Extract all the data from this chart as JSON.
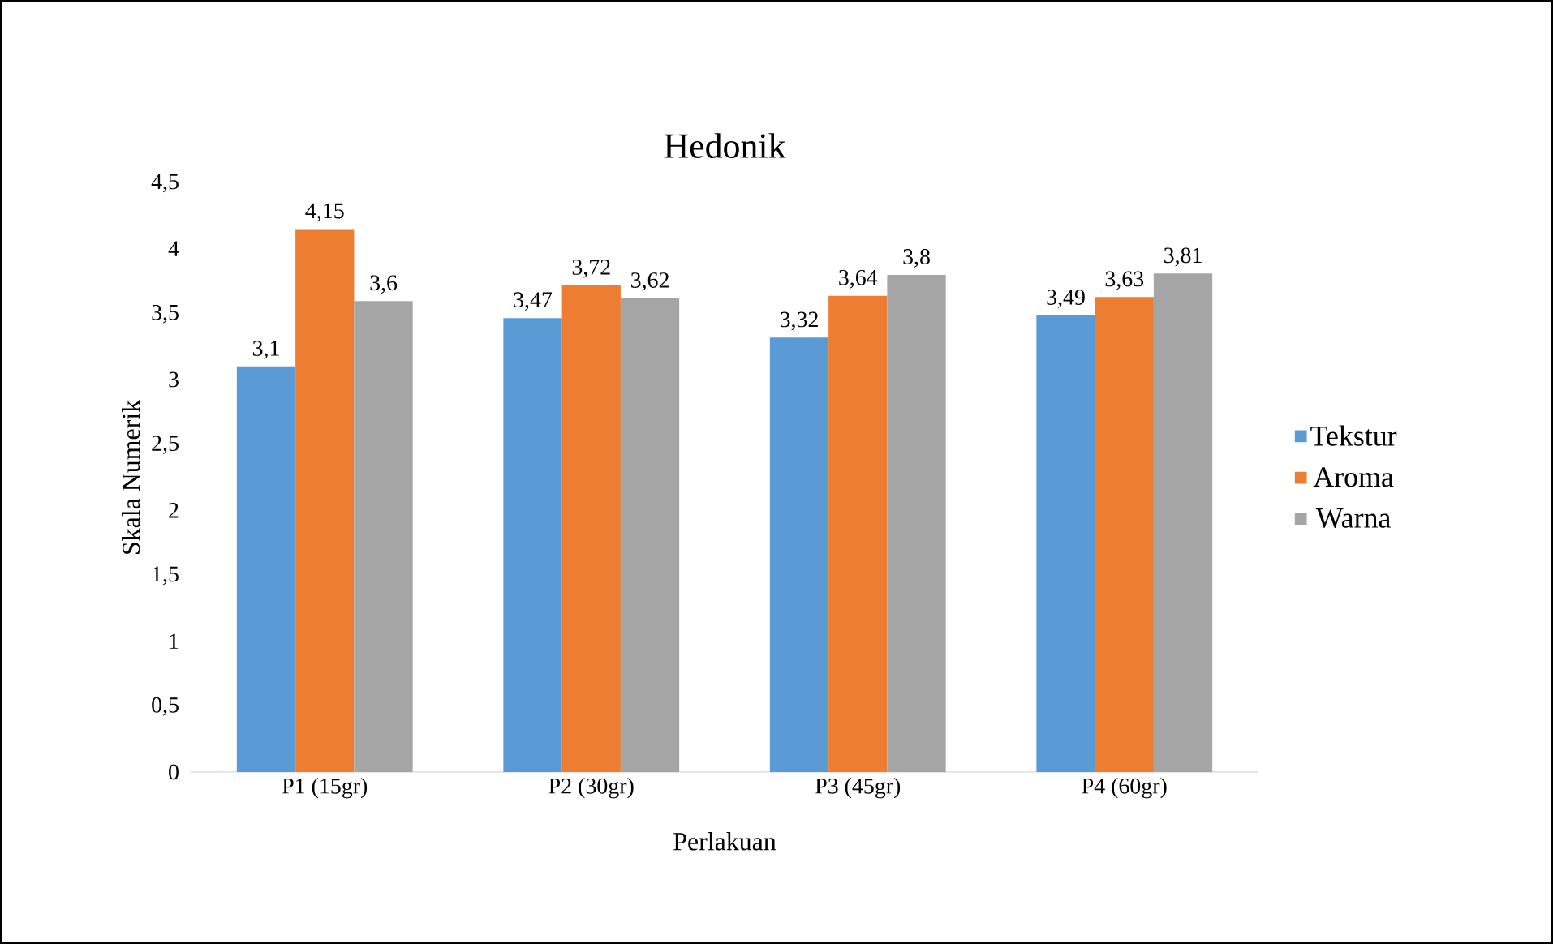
{
  "chart_data": {
    "type": "bar",
    "title": "Hedonik",
    "xlabel": "Perlakuan",
    "ylabel": "Skala Numerik",
    "categories": [
      "P1 (15gr)",
      "P2 (30gr)",
      "P3 (45gr)",
      "P4 (60gr)"
    ],
    "series": [
      {
        "name": "Tekstur",
        "color": "#5b9bd5",
        "values": [
          3.1,
          3.47,
          3.32,
          3.49
        ],
        "value_labels": [
          "3,1",
          "3,47",
          "3,32",
          "3,49"
        ]
      },
      {
        "name": "Aroma",
        "color": "#ed7d31",
        "values": [
          4.15,
          3.72,
          3.64,
          3.63
        ],
        "value_labels": [
          "4,15",
          "3,72",
          "3,64",
          "3,63"
        ]
      },
      {
        "name": "Warna",
        "color": "#a5a5a5",
        "values": [
          3.6,
          3.62,
          3.8,
          3.81
        ],
        "value_labels": [
          "3,6",
          "3,62",
          "3,8",
          "3,81"
        ]
      }
    ],
    "ylim": [
      0,
      4.5
    ],
    "yticks": [
      {
        "value": 0,
        "label": "0"
      },
      {
        "value": 0.5,
        "label": "0,5"
      },
      {
        "value": 1,
        "label": "1"
      },
      {
        "value": 1.5,
        "label": "1,5"
      },
      {
        "value": 2,
        "label": "2"
      },
      {
        "value": 2.5,
        "label": "2,5"
      },
      {
        "value": 3,
        "label": "3"
      },
      {
        "value": 3.5,
        "label": "3,5"
      },
      {
        "value": 4,
        "label": "4"
      },
      {
        "value": 4.5,
        "label": "4,5"
      }
    ],
    "legend": "right"
  }
}
